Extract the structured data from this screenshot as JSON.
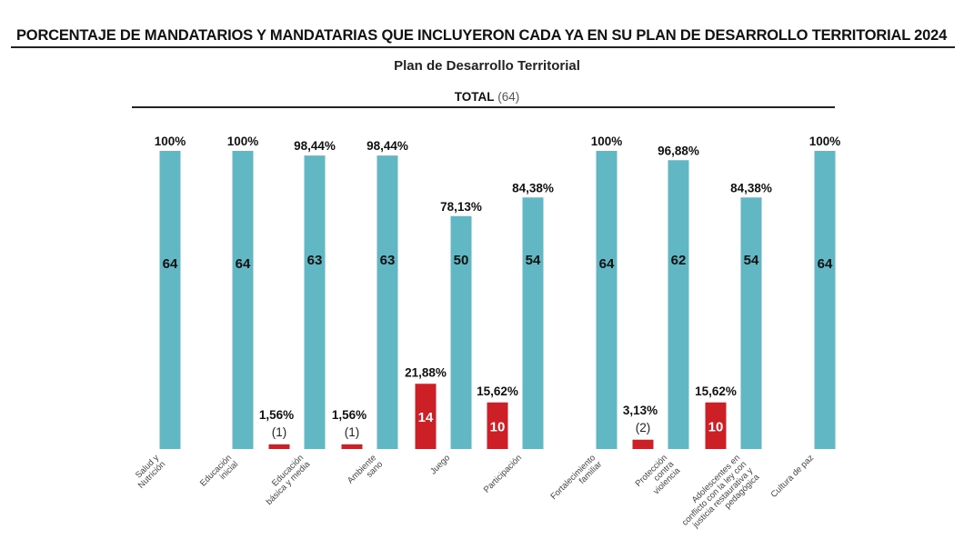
{
  "header": {
    "title": "PORCENTAJE DE MANDATARIOS Y MANDATARIAS QUE INCLUYERON CADA YA EN SU PLAN DE DESARROLLO TERRITORIAL 2024",
    "subtitle": "Plan de Desarrollo Territorial",
    "total_label": "TOTAL",
    "total_count": "(64)"
  },
  "colors": {
    "teal": "#62b7c4",
    "red": "#cc1f26"
  },
  "chart_data": {
    "type": "bar",
    "title": "PORCENTAJE DE MANDATARIOS Y MANDATARIAS QUE INCLUYERON CADA YA EN SU PLAN DE DESARROLLO TERRITORIAL 2024",
    "subtitle": "Plan de Desarrollo Territorial",
    "total": 64,
    "categories": [
      {
        "label": [
          "Salud y",
          "Nutrición"
        ]
      },
      {
        "label": [
          "Educación",
          "inicial"
        ]
      },
      {
        "label": [
          "Educación",
          "básica y media"
        ]
      },
      {
        "label": [
          "Ambiente",
          "sano"
        ]
      },
      {
        "label": [
          "Juego"
        ]
      },
      {
        "label": [
          "Participación"
        ]
      },
      {
        "label": [
          "Fortalecimiento",
          "familiar"
        ]
      },
      {
        "label": [
          "Protección",
          "contra",
          "violencia"
        ]
      },
      {
        "label": [
          "Adolescentes en",
          "conflicto con la ley con",
          "justicia restaurativa y",
          "pedagógica"
        ]
      },
      {
        "label": [
          "Cultura de paz"
        ]
      }
    ],
    "series": [
      {
        "color": "#cc1f26",
        "values": [
          null,
          null,
          1,
          1,
          14,
          10,
          null,
          2,
          10,
          null
        ],
        "pct_labels": [
          null,
          null,
          "1,56%",
          "1,56%",
          "21,88%",
          "15,62%",
          null,
          "3,13%",
          "15,62%",
          null
        ]
      },
      {
        "color": "#62b7c4",
        "values": [
          64,
          64,
          63,
          63,
          50,
          54,
          64,
          62,
          54,
          64
        ],
        "pct_labels": [
          "100%",
          "100%",
          "98,44%",
          "98,44%",
          "78,13%",
          "84,38%",
          "100%",
          "96,88%",
          "84,38%",
          "100%"
        ]
      }
    ],
    "ylim": [
      0,
      64
    ],
    "grid": false,
    "legend": "none"
  }
}
